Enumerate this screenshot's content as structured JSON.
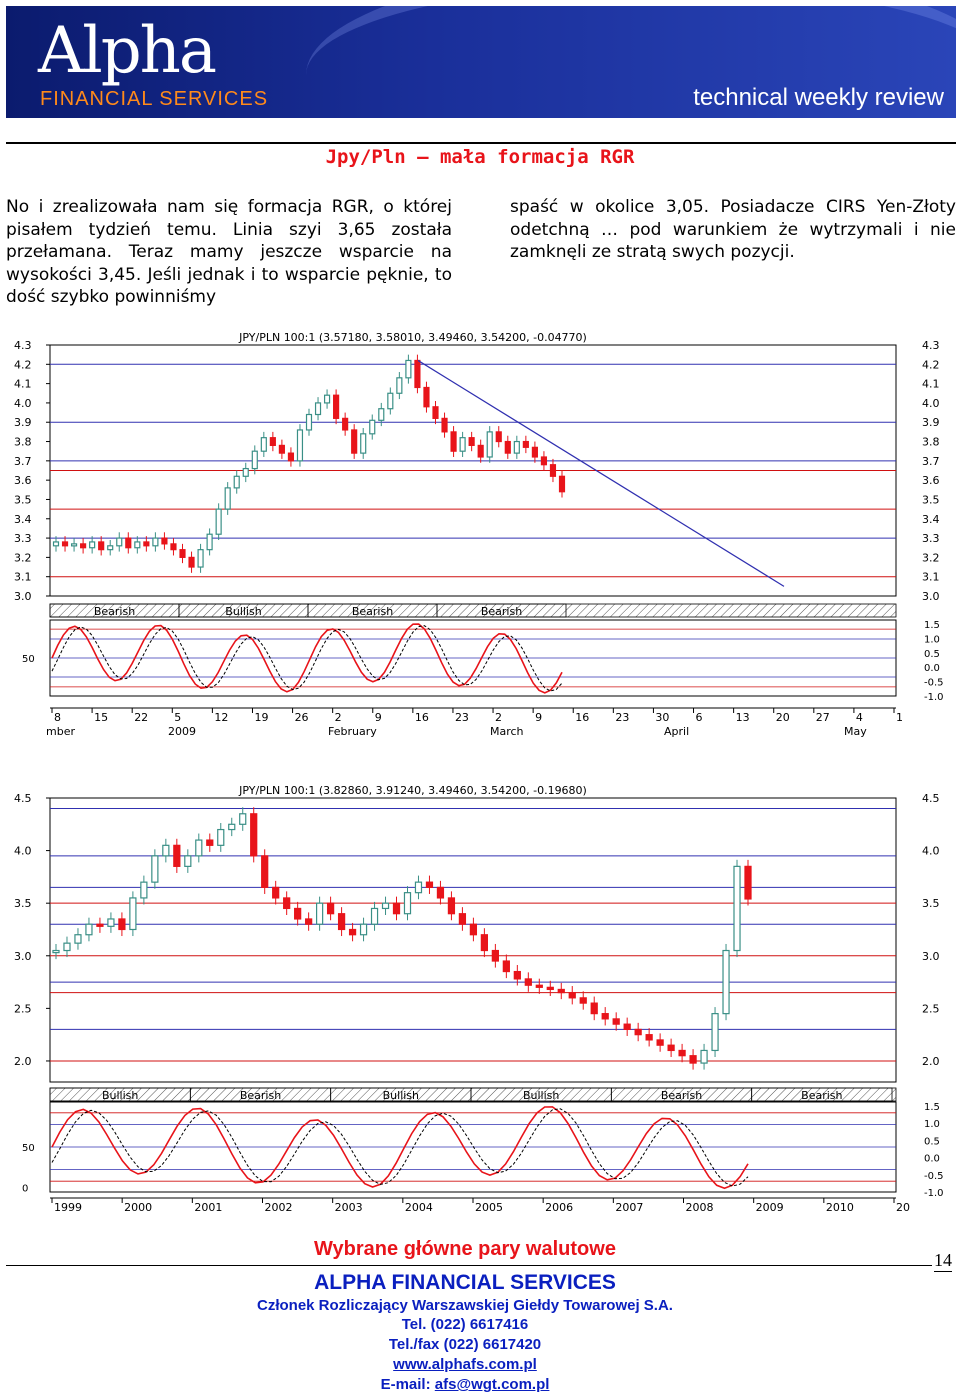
{
  "banner": {
    "logo_text": "Alpha",
    "logo_sub": "FINANCIAL  SERVICES",
    "tagline": "technical weekly review"
  },
  "headline": "Jpy/Pln – mała formacja RGR",
  "body_left": "No i zrealizowała nam się formacja RGR, o której pisałem tydzień temu. Linia szyi 3,65 została przełamana. Teraz mamy jeszcze wsparcie na wysokości 3,45. Jeśli jednak i to wsparcie pęknie, to dość szybko powinniśmy",
  "body_right": "spaść w okolice 3,05. Posiadacze CIRS Yen-Złoty odetchną … pod warunkiem że wytrzymali i nie zamknęli ze stratą swych pozycji.",
  "colors": {
    "up": "#3a8f86",
    "down": "#e8141a",
    "headline": "#e8141a",
    "footer": "#0a1fbf",
    "gridline": "#3030b0",
    "support": "#d01010"
  },
  "chart_data": [
    {
      "type": "candlestick",
      "title": "JPY/PLN 100:1 (3.57180, 3.58010, 3.49460, 3.54200, -0.04770)",
      "ylim": [
        3.0,
        4.3
      ],
      "y_ticks": [
        "4.3",
        "4.2",
        "4.1",
        "4.0",
        "3.9",
        "3.8",
        "3.7",
        "3.6",
        "3.5",
        "3.4",
        "3.3",
        "3.2",
        "3.1",
        "3.0"
      ],
      "x_tick_labels": [
        "8",
        "15",
        "22",
        "5",
        "12",
        "19",
        "26",
        "2",
        "9",
        "16",
        "23",
        "2",
        "9",
        "16",
        "23",
        "30",
        "6",
        "13",
        "20",
        "27",
        "4",
        "1"
      ],
      "month_labels": [
        "mber",
        "2009",
        "February",
        "March",
        "April",
        "May"
      ],
      "signal_labels": [
        "Bearish",
        "Bullish",
        "Bearish",
        "Bearish"
      ],
      "osc_left_ticks": [
        "50"
      ],
      "osc_right_ticks": [
        "1.5",
        "1.0",
        "0.5",
        "0.0",
        "-0.5",
        "-1.0"
      ],
      "blue_levels": [
        4.2,
        3.9,
        3.7,
        3.3
      ],
      "red_levels": [
        3.65,
        3.45,
        3.1
      ],
      "trendline": [
        [
          4.22,
          4.22
        ],
        [
          3.05,
          3.05
        ]
      ],
      "closes": [
        3.28,
        3.26,
        3.27,
        3.25,
        3.28,
        3.24,
        3.26,
        3.3,
        3.25,
        3.28,
        3.26,
        3.3,
        3.27,
        3.24,
        3.2,
        3.15,
        3.24,
        3.32,
        3.45,
        3.56,
        3.62,
        3.66,
        3.75,
        3.82,
        3.78,
        3.74,
        3.7,
        3.86,
        3.94,
        4.0,
        4.04,
        3.92,
        3.86,
        3.74,
        3.84,
        3.91,
        3.97,
        4.05,
        4.13,
        4.22,
        4.08,
        3.98,
        3.92,
        3.85,
        3.75,
        3.82,
        3.78,
        3.72,
        3.85,
        3.8,
        3.74,
        3.8,
        3.77,
        3.72,
        3.68,
        3.62,
        3.54
      ]
    },
    {
      "type": "candlestick",
      "title": "JPY/PLN 100:1 (3.82860, 3.91240, 3.49460, 3.54200, -0.19680)",
      "ylim": [
        1.8,
        4.5
      ],
      "y_ticks": [
        "4.5",
        "4.0",
        "3.5",
        "3.0",
        "2.5",
        "2.0"
      ],
      "x_tick_labels": [
        "1999",
        "2000",
        "2001",
        "2002",
        "2003",
        "2004",
        "2005",
        "2006",
        "2007",
        "2008",
        "2009",
        "2010",
        "20"
      ],
      "signal_labels": [
        "Bullish",
        "Bearish",
        "Bullish",
        "Bullish",
        "Bearish",
        "Bearish"
      ],
      "osc_left_ticks": [
        "50",
        "0"
      ],
      "osc_right_ticks": [
        "1.5",
        "1.0",
        "0.5",
        "0.0",
        "-0.5",
        "-1.0"
      ],
      "blue_levels": [
        4.4,
        3.95,
        3.65,
        3.3,
        2.75,
        2.3
      ],
      "red_levels": [
        3.5,
        3.0,
        2.65,
        2.0
      ],
      "closes": [
        3.05,
        3.12,
        3.2,
        3.3,
        3.28,
        3.35,
        3.25,
        3.55,
        3.7,
        3.95,
        4.05,
        3.85,
        3.95,
        4.1,
        4.05,
        4.2,
        4.25,
        4.35,
        3.95,
        3.65,
        3.55,
        3.45,
        3.35,
        3.3,
        3.5,
        3.4,
        3.25,
        3.2,
        3.3,
        3.45,
        3.5,
        3.4,
        3.6,
        3.7,
        3.65,
        3.55,
        3.4,
        3.3,
        3.2,
        3.05,
        2.95,
        2.85,
        2.78,
        2.72,
        2.7,
        2.68,
        2.65,
        2.6,
        2.55,
        2.45,
        2.4,
        2.35,
        2.3,
        2.25,
        2.2,
        2.15,
        2.1,
        2.05,
        1.98,
        2.1,
        2.45,
        3.05,
        3.85,
        3.54
      ]
    }
  ],
  "footer": {
    "title": "Wybrane główne pary walutowe",
    "page": "14",
    "company": "ALPHA FINANCIAL SERVICES",
    "member": "Członek Rozliczający Warszawskiej Giełdy Towarowej S.A.",
    "tel": "Tel. (022) 6617416",
    "fax": "Tel./fax (022) 6617420",
    "www": "www.alphafs.com.pl",
    "email_label": "E-mail:",
    "email": "afs@wgt.com.pl"
  }
}
